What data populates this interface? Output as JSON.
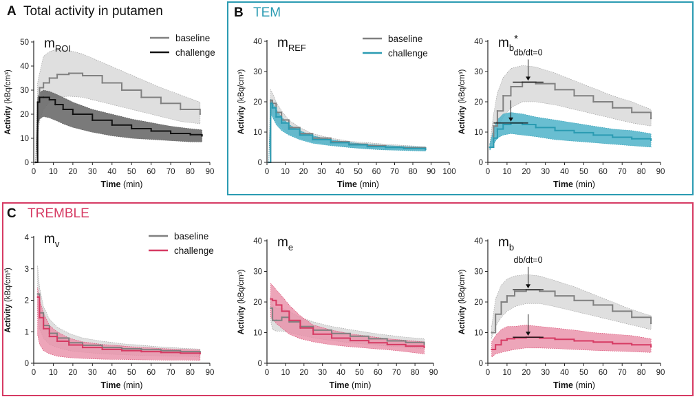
{
  "panels": {
    "A": {
      "letter": "A",
      "title": "Total activity in putamen"
    },
    "B": {
      "letter": "B",
      "title": "TEM",
      "color": "#2a9bb2"
    },
    "C": {
      "letter": "C",
      "title": "TREMBLE",
      "color": "#d63a63"
    }
  },
  "legend": {
    "baseline": "baseline",
    "challenge": "challenge"
  },
  "colors": {
    "baseline": "#808080",
    "baseline_band": "#d9d9d9",
    "challenge_A": "#111111",
    "challenge_A_band": "#6b6b6b",
    "challenge_B": "#2a9bb2",
    "challenge_B_band": "#4fb3c9",
    "challenge_C": "#d63a63",
    "challenge_C_band": "#e98ea8"
  },
  "chart_data": [
    {
      "id": "A",
      "type": "line",
      "name_main": "m",
      "name_sub": "ROI",
      "name_sup": "",
      "title": "Total activity in putamen",
      "xlabel": "Time",
      "xunit": "(min)",
      "ylabel": "Activity",
      "yunit": "(kBq/cm³)",
      "xlim": [
        0,
        90
      ],
      "ylim": [
        0,
        50
      ],
      "xticks": [
        0,
        10,
        20,
        30,
        40,
        50,
        60,
        70,
        80,
        90
      ],
      "yticks": [
        0,
        10,
        20,
        30,
        40,
        50
      ],
      "legend_position": "top-right",
      "series": [
        {
          "name": "baseline",
          "style": "baseline",
          "x": [
            1,
            2,
            3,
            5,
            8,
            12,
            18,
            25,
            35,
            45,
            55,
            65,
            75,
            85
          ],
          "y": [
            0,
            25,
            31,
            33,
            35,
            36.5,
            37,
            36,
            33,
            30,
            27,
            24.5,
            22,
            20
          ],
          "lower": [
            0,
            10,
            17,
            22,
            25,
            27,
            27.5,
            27,
            25,
            23,
            21,
            19,
            17,
            16
          ],
          "upper": [
            0,
            33,
            37,
            44,
            46,
            47,
            46.5,
            45,
            41.5,
            38,
            34.5,
            31,
            28,
            25
          ]
        },
        {
          "name": "challenge",
          "style": "challenge_A",
          "x": [
            1,
            2,
            3,
            5,
            8,
            11,
            15,
            20,
            30,
            40,
            50,
            60,
            70,
            80,
            86
          ],
          "y": [
            0,
            25,
            27,
            27,
            26,
            24,
            22,
            20,
            17.5,
            15.5,
            14,
            13,
            12,
            11.5,
            11
          ],
          "lower": [
            0,
            15,
            18,
            19,
            18.5,
            17.5,
            16,
            14.5,
            12.5,
            11,
            10,
            9.5,
            9,
            8.5,
            8.5
          ],
          "upper": [
            0,
            27,
            29,
            30,
            29.5,
            28.5,
            27,
            25,
            22,
            20,
            18,
            16.5,
            15,
            14,
            13.5
          ]
        }
      ]
    },
    {
      "id": "B1",
      "type": "line",
      "name_main": "m",
      "name_sub": "REF",
      "name_sup": "",
      "xlabel": "Time",
      "xunit": "(min)",
      "ylabel": "Activity",
      "yunit": "(kBq/cm³)",
      "xlim": [
        0,
        100
      ],
      "ylim": [
        0,
        40
      ],
      "xticks": [
        0,
        10,
        20,
        30,
        40,
        50,
        60,
        70,
        80,
        90,
        100
      ],
      "yticks": [
        0,
        10,
        20,
        30,
        40
      ],
      "legend_position": "top-right",
      "series": [
        {
          "name": "baseline",
          "style": "baseline",
          "x": [
            1,
            2,
            3,
            5,
            8,
            12,
            18,
            25,
            35,
            45,
            55,
            65,
            75,
            87
          ],
          "y": [
            0,
            20.5,
            19.5,
            16.5,
            14,
            11.5,
            9.5,
            8,
            6.8,
            6,
            5.5,
            5,
            4.8,
            4.4
          ],
          "lower": [
            0,
            17,
            16,
            13.5,
            11.5,
            9.5,
            8,
            6.8,
            5.8,
            5,
            4.5,
            4.2,
            4,
            3.8
          ],
          "upper": [
            0,
            24,
            23,
            20,
            17,
            14,
            11.5,
            9.5,
            8,
            7,
            6.5,
            6,
            5.6,
            5.2
          ]
        },
        {
          "name": "challenge",
          "style": "challenge_B",
          "x": [
            1,
            2,
            3,
            5,
            8,
            12,
            18,
            25,
            35,
            45,
            55,
            65,
            75,
            87
          ],
          "y": [
            0,
            19.5,
            18,
            15,
            13,
            11,
            9,
            7.5,
            6.5,
            5.8,
            5.2,
            4.9,
            4.6,
            4.2
          ],
          "lower": [
            0,
            16,
            15,
            12.5,
            10.5,
            9,
            7.5,
            6.3,
            5.5,
            4.9,
            4.4,
            4.1,
            3.9,
            3.7
          ],
          "upper": [
            0,
            21,
            20,
            17.5,
            15,
            12.5,
            10.5,
            8.8,
            7.5,
            6.6,
            6,
            5.6,
            5.3,
            5
          ]
        }
      ]
    },
    {
      "id": "B2",
      "type": "line",
      "name_main": "m",
      "name_sub": "b",
      "name_sup": "*",
      "xlabel": "Time",
      "xunit": "(min)",
      "ylabel": "Activity",
      "yunit": "(kBq/cm³)",
      "xlim": [
        0,
        90
      ],
      "ylim": [
        0,
        40
      ],
      "xticks": [
        0,
        10,
        20,
        30,
        40,
        50,
        60,
        70,
        80,
        90
      ],
      "yticks": [
        0,
        10,
        20,
        30,
        40
      ],
      "annotation": {
        "text": "db/dt=0",
        "x": 21,
        "y": 26.5
      },
      "markers": [
        {
          "x": 21,
          "y": 26.5,
          "y_top": 34,
          "half_width": 8
        },
        {
          "x": 12,
          "y": 13,
          "y_top": 20.5,
          "half_width": 9
        }
      ],
      "series": [
        {
          "name": "baseline",
          "style": "baseline",
          "x": [
            1,
            3,
            5,
            8,
            12,
            18,
            25,
            35,
            45,
            55,
            65,
            75,
            85
          ],
          "y": [
            5,
            12,
            17,
            22,
            25,
            26.5,
            26,
            24,
            22,
            20,
            18,
            16.5,
            14.5
          ],
          "lower": [
            4,
            8,
            11,
            15,
            18,
            20,
            20,
            19,
            17.5,
            16,
            14.5,
            13,
            12
          ],
          "upper": [
            6,
            16,
            23,
            28,
            31,
            32,
            31.5,
            29.5,
            27,
            24.5,
            22,
            20,
            17.5
          ]
        },
        {
          "name": "challenge",
          "style": "challenge_B",
          "x": [
            1,
            3,
            5,
            8,
            12,
            18,
            25,
            35,
            45,
            55,
            65,
            75,
            85
          ],
          "y": [
            5,
            8,
            11,
            12.5,
            13,
            12.5,
            11.5,
            10.5,
            9.8,
            9,
            8.3,
            7.8,
            7.3
          ],
          "lower": [
            4,
            6,
            8,
            9,
            9.5,
            9,
            8.5,
            7.5,
            7,
            6.5,
            6,
            5.5,
            5
          ],
          "upper": [
            6,
            11,
            14,
            16,
            16.5,
            16,
            15,
            14,
            13,
            12,
            11,
            10.5,
            9.5
          ]
        }
      ]
    },
    {
      "id": "C1",
      "type": "line",
      "name_main": "m",
      "name_sub": "v",
      "name_sup": "",
      "xlabel": "Time",
      "xunit": "(min)",
      "ylabel": "Activity",
      "yunit": "(kBq/cm³)",
      "xlim": [
        0,
        90
      ],
      "ylim": [
        0,
        4
      ],
      "xticks": [
        0,
        10,
        20,
        30,
        40,
        50,
        60,
        70,
        80,
        90
      ],
      "yticks": [
        0,
        1,
        2,
        3,
        4
      ],
      "legend_position": "top-right",
      "series": [
        {
          "name": "baseline",
          "style": "baseline",
          "x": [
            2,
            3,
            5,
            8,
            12,
            18,
            25,
            35,
            45,
            55,
            65,
            75,
            85
          ],
          "y": [
            2.2,
            1.6,
            1.2,
            0.95,
            0.8,
            0.65,
            0.57,
            0.5,
            0.46,
            0.43,
            0.4,
            0.37,
            0.35
          ],
          "lower": [
            1.5,
            1.1,
            0.8,
            0.6,
            0.5,
            0.4,
            0.35,
            0.3,
            0.27,
            0.25,
            0.23,
            0.22,
            0.21
          ],
          "upper": [
            3.1,
            2.4,
            1.8,
            1.4,
            1.15,
            0.95,
            0.8,
            0.7,
            0.62,
            0.57,
            0.52,
            0.48,
            0.45
          ]
        },
        {
          "name": "challenge",
          "style": "challenge_C",
          "x": [
            2,
            3,
            5,
            8,
            12,
            18,
            25,
            35,
            45,
            55,
            65,
            75,
            85
          ],
          "y": [
            2.1,
            1.45,
            1.1,
            0.85,
            0.7,
            0.58,
            0.5,
            0.44,
            0.4,
            0.37,
            0.34,
            0.32,
            0.3
          ],
          "lower": [
            0.9,
            0.6,
            0.4,
            0.3,
            0.22,
            0.18,
            0.15,
            0.13,
            0.12,
            0.11,
            0.1,
            0.1,
            0.09
          ],
          "upper": [
            2.4,
            2,
            1.6,
            1.2,
            1,
            0.8,
            0.68,
            0.6,
            0.55,
            0.5,
            0.47,
            0.44,
            0.42
          ]
        }
      ]
    },
    {
      "id": "C2",
      "type": "line",
      "name_main": "m",
      "name_sub": "e",
      "name_sup": "",
      "xlabel": "Time",
      "xunit": "(min)",
      "ylabel": "Activity",
      "yunit": "(kBq/cm³)",
      "xlim": [
        0,
        90
      ],
      "ylim": [
        0,
        40
      ],
      "xticks": [
        0,
        10,
        20,
        30,
        40,
        50,
        60,
        70,
        80,
        90
      ],
      "yticks": [
        0,
        10,
        20,
        30,
        40
      ],
      "series": [
        {
          "name": "baseline",
          "style": "baseline",
          "x": [
            2,
            3,
            5,
            8,
            12,
            18,
            25,
            35,
            45,
            55,
            65,
            75,
            85
          ],
          "y": [
            18,
            14,
            14,
            15,
            13.5,
            12,
            10.8,
            9.7,
            8.8,
            8,
            7.3,
            6.8,
            6.2
          ],
          "lower": [
            14,
            11,
            10.5,
            10.5,
            10,
            9.2,
            8.3,
            7.4,
            6.7,
            6.1,
            5.6,
            5.2,
            4.8
          ],
          "upper": [
            22,
            19,
            18,
            18,
            17,
            15,
            13.5,
            12,
            11,
            10,
            9.2,
            8.5,
            8
          ]
        },
        {
          "name": "challenge",
          "style": "challenge_C",
          "x": [
            2,
            3,
            5,
            8,
            12,
            18,
            25,
            35,
            45,
            55,
            65,
            75,
            85
          ],
          "y": [
            21,
            20.5,
            19,
            17,
            14,
            11.5,
            9.5,
            8.2,
            7.4,
            6.7,
            6.1,
            5.6,
            5.2
          ],
          "lower": [
            15,
            14.5,
            13,
            11.5,
            9.5,
            8,
            7,
            6,
            5.4,
            4.9,
            4.4,
            3.8,
            3
          ],
          "upper": [
            26,
            25.5,
            24,
            22,
            19,
            15.5,
            12.5,
            10.8,
            9.6,
            8.8,
            8,
            7.5,
            7
          ]
        }
      ]
    },
    {
      "id": "C3",
      "type": "line",
      "name_main": "m",
      "name_sub": "b",
      "name_sup": "",
      "xlabel": "Time",
      "xunit": "(min)",
      "ylabel": "Activity",
      "yunit": "(kBq/cm³)",
      "xlim": [
        0,
        90
      ],
      "ylim": [
        0,
        40
      ],
      "xticks": [
        0,
        10,
        20,
        30,
        40,
        50,
        60,
        70,
        80,
        90
      ],
      "yticks": [
        0,
        10,
        20,
        30,
        40
      ],
      "annotation": {
        "text": "db/dt=0",
        "x": 21,
        "y": 24
      },
      "markers": [
        {
          "x": 21,
          "y": 24,
          "y_top": 31.5,
          "half_width": 8
        },
        {
          "x": 21,
          "y": 8.5,
          "y_top": 16,
          "half_width": 8
        }
      ],
      "series": [
        {
          "name": "baseline",
          "style": "baseline",
          "x": [
            2,
            4,
            7,
            10,
            14,
            20,
            27,
            35,
            45,
            55,
            65,
            75,
            85
          ],
          "y": [
            10,
            16,
            20,
            22,
            23.5,
            24,
            23.5,
            22,
            20.5,
            19,
            17,
            15,
            13
          ],
          "lower": [
            8,
            12,
            15,
            17,
            18.5,
            19.5,
            19.5,
            18.5,
            17,
            15.5,
            14,
            12.5,
            11
          ],
          "upper": [
            12,
            21,
            25.5,
            27.5,
            28.5,
            29,
            28.5,
            27,
            25,
            22.5,
            20,
            17.5,
            15.5
          ]
        },
        {
          "name": "challenge",
          "style": "challenge_C",
          "x": [
            2,
            4,
            7,
            10,
            14,
            20,
            27,
            35,
            45,
            55,
            65,
            75,
            85
          ],
          "y": [
            4.5,
            6,
            7.5,
            8,
            8.3,
            8.5,
            8.2,
            7.8,
            7.3,
            6.9,
            6.4,
            6,
            5.4
          ],
          "lower": [
            2,
            3,
            3.5,
            4,
            4.5,
            5,
            5,
            4.8,
            4.5,
            4.2,
            4,
            3.8,
            3.5
          ],
          "upper": [
            7,
            9,
            11,
            12,
            12,
            12.5,
            12,
            11.5,
            10.8,
            10,
            9.5,
            9,
            8
          ]
        }
      ]
    }
  ]
}
